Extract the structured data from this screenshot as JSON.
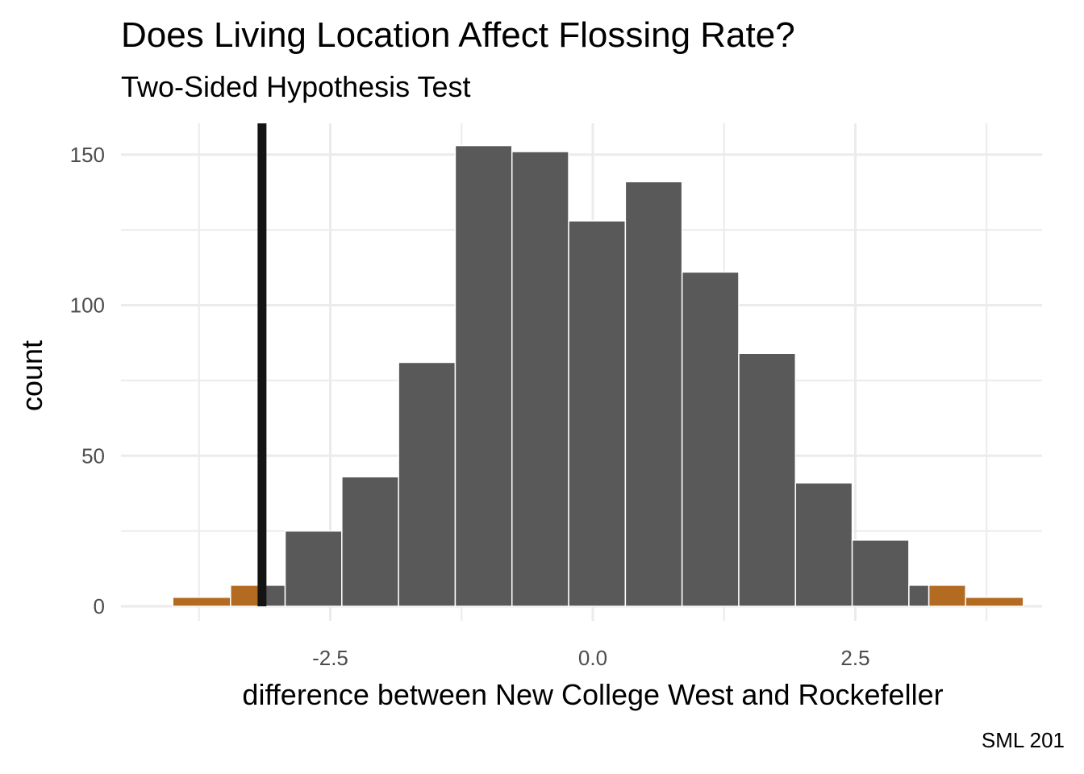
{
  "chart_data": {
    "type": "bar",
    "title": "Does Living Location Affect Flossing Rate?",
    "subtitle": "Two-Sided Hypothesis Test",
    "xlabel": "difference between New College West and Rockefeller",
    "ylabel": "count",
    "caption": "SML 201",
    "xlim": [
      -4.5,
      4.6
    ],
    "ylim": [
      0,
      160
    ],
    "x_ticks": [
      -2.5,
      0.0,
      2.5
    ],
    "x_tick_labels": [
      "-2.5",
      "0.0",
      "2.5"
    ],
    "y_ticks": [
      0,
      50,
      100,
      150
    ],
    "y_tick_labels": [
      "0",
      "50",
      "100",
      "150"
    ],
    "grid": true,
    "bins": [
      {
        "x0": -4.0,
        "x1": -3.45,
        "count": 3,
        "shaded": true
      },
      {
        "x0": -3.45,
        "x1": -3.15,
        "count": 7,
        "shaded": true
      },
      {
        "x0": -3.15,
        "x1": -2.93,
        "count": 7,
        "shaded": false
      },
      {
        "x0": -2.93,
        "x1": -2.39,
        "count": 25,
        "shaded": false
      },
      {
        "x0": -2.39,
        "x1": -1.85,
        "count": 43,
        "shaded": false
      },
      {
        "x0": -1.85,
        "x1": -1.31,
        "count": 81,
        "shaded": false
      },
      {
        "x0": -1.31,
        "x1": -0.77,
        "count": 153,
        "shaded": false
      },
      {
        "x0": -0.77,
        "x1": -0.23,
        "count": 151,
        "shaded": false
      },
      {
        "x0": -0.23,
        "x1": 0.31,
        "count": 128,
        "shaded": false
      },
      {
        "x0": 0.31,
        "x1": 0.85,
        "count": 141,
        "shaded": false
      },
      {
        "x0": 0.85,
        "x1": 1.39,
        "count": 111,
        "shaded": false
      },
      {
        "x0": 1.39,
        "x1": 1.93,
        "count": 84,
        "shaded": false
      },
      {
        "x0": 1.93,
        "x1": 2.47,
        "count": 41,
        "shaded": false
      },
      {
        "x0": 2.47,
        "x1": 3.01,
        "count": 22,
        "shaded": false
      },
      {
        "x0": 3.01,
        "x1": 3.2,
        "count": 7,
        "shaded": false
      },
      {
        "x0": 3.2,
        "x1": 3.55,
        "count": 7,
        "shaded": true
      },
      {
        "x0": 3.55,
        "x1": 4.1,
        "count": 3,
        "shaded": true
      }
    ],
    "observed_difference": -3.15,
    "colors": {
      "bar": "#595959",
      "shaded": "#b36b22",
      "observed_line": "#141414",
      "grid": "#ebebeb"
    }
  }
}
